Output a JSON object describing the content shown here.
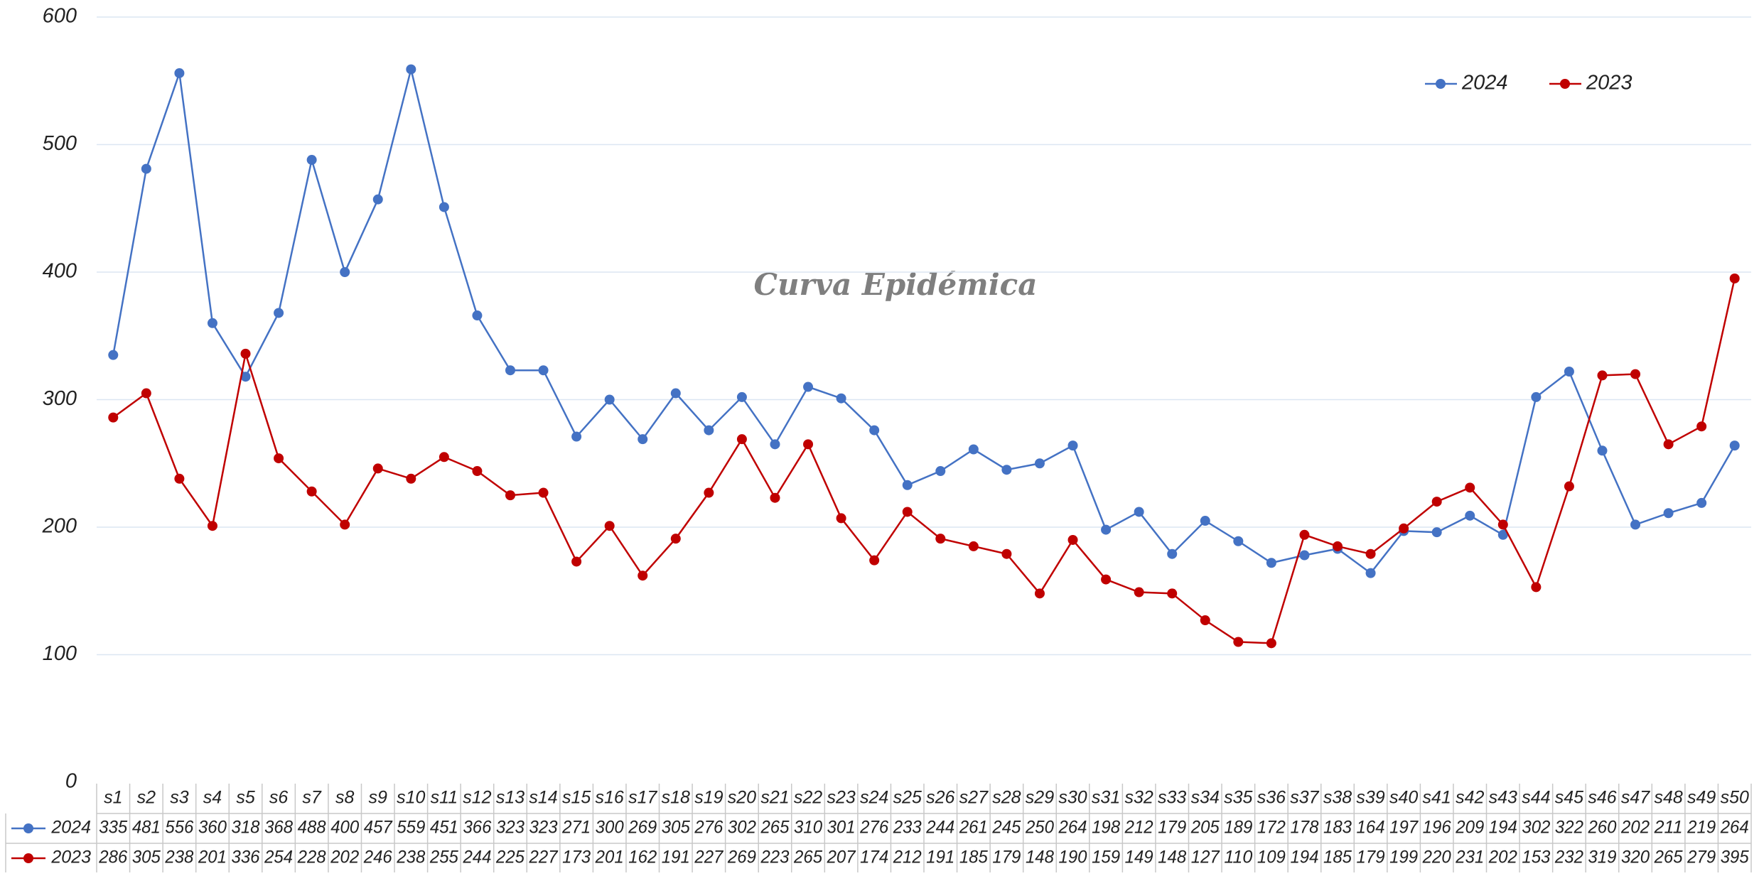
{
  "chart_data": {
    "type": "line",
    "title": "Curva Epidémica",
    "categories": [
      "s1",
      "s2",
      "s3",
      "s4",
      "s5",
      "s6",
      "s7",
      "s8",
      "s9",
      "s10",
      "s11",
      "s12",
      "s13",
      "s14",
      "s15",
      "s16",
      "s17",
      "s18",
      "s19",
      "s20",
      "s21",
      "s22",
      "s23",
      "s24",
      "s25",
      "s26",
      "s27",
      "s28",
      "s29",
      "s30",
      "s31",
      "s32",
      "s33",
      "s34",
      "s35",
      "s36",
      "s37",
      "s38",
      "s39",
      "s40",
      "s41",
      "s42",
      "s43",
      "s44",
      "s45",
      "s46",
      "s47",
      "s48",
      "s49",
      "s50"
    ],
    "series": [
      {
        "name": "2024",
        "color": "#4472c4",
        "values": [
          335,
          481,
          556,
          360,
          318,
          368,
          488,
          400,
          457,
          559,
          451,
          366,
          323,
          323,
          271,
          300,
          269,
          305,
          276,
          302,
          265,
          310,
          301,
          276,
          233,
          244,
          261,
          245,
          250,
          264,
          198,
          212,
          179,
          205,
          189,
          172,
          178,
          183,
          164,
          197,
          196,
          209,
          194,
          302,
          322,
          260,
          202,
          211,
          219,
          264
        ]
      },
      {
        "name": "2023",
        "color": "#c00000",
        "values": [
          286,
          305,
          238,
          201,
          336,
          254,
          228,
          202,
          246,
          238,
          255,
          244,
          225,
          227,
          173,
          201,
          162,
          191,
          227,
          269,
          223,
          265,
          207,
          174,
          212,
          191,
          185,
          179,
          148,
          190,
          159,
          149,
          148,
          127,
          110,
          109,
          194,
          185,
          179,
          199,
          220,
          231,
          202,
          153,
          232,
          319,
          320,
          265,
          279,
          395
        ]
      }
    ],
    "ylim": [
      0,
      600
    ],
    "yticks": [
      0,
      100,
      200,
      300,
      400,
      500,
      600
    ],
    "grid": true,
    "legend": "upper right",
    "data_table": true
  }
}
